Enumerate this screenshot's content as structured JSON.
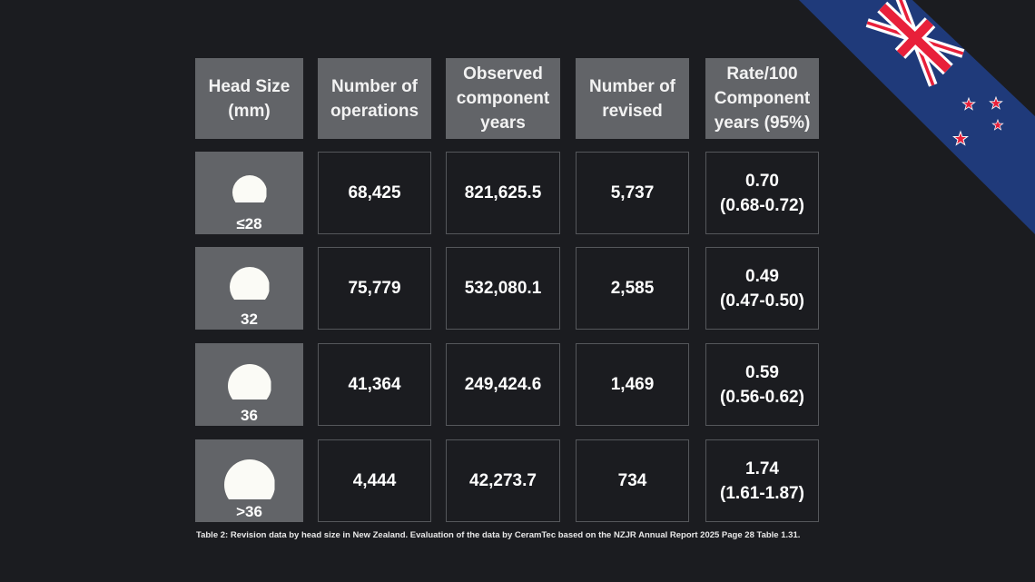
{
  "table": {
    "headers": [
      "Head Size\n(mm)",
      "Number of\noperations",
      "Observed\ncomponent\nyears",
      "Number of\nrevised",
      "Rate/100\nComponent\nyears (95%)"
    ],
    "rows": [
      {
        "head_size": "≤28",
        "operations": "68,425",
        "component_years": "821,625.5",
        "revised": "5,737",
        "rate": "0.70\n(0.68-0.72)"
      },
      {
        "head_size": "32",
        "operations": "75,779",
        "component_years": "532,080.1",
        "revised": "2,585",
        "rate": "0.49\n(0.47-0.50)"
      },
      {
        "head_size": "36",
        "operations": "41,364",
        "component_years": "249,424.6",
        "revised": "1,469",
        "rate": "0.59\n(0.56-0.62)"
      },
      {
        "head_size": ">36",
        "operations": "4,444",
        "component_years": "42,273.7",
        "revised": "734",
        "rate": "1.74\n(1.61-1.87)"
      }
    ]
  },
  "caption": "Table 2: Revision data by head size in New Zealand. Evaluation of the data by CeramTec based on the NZJR Annual Report 2025 Page 28 Table 1.31.",
  "decoration": {
    "flag": "new-zealand-flag",
    "colors": {
      "background": "#1b1c20",
      "header": "#626468",
      "flag_blue": "#1f3a7a",
      "flag_red": "#e8203a"
    }
  }
}
